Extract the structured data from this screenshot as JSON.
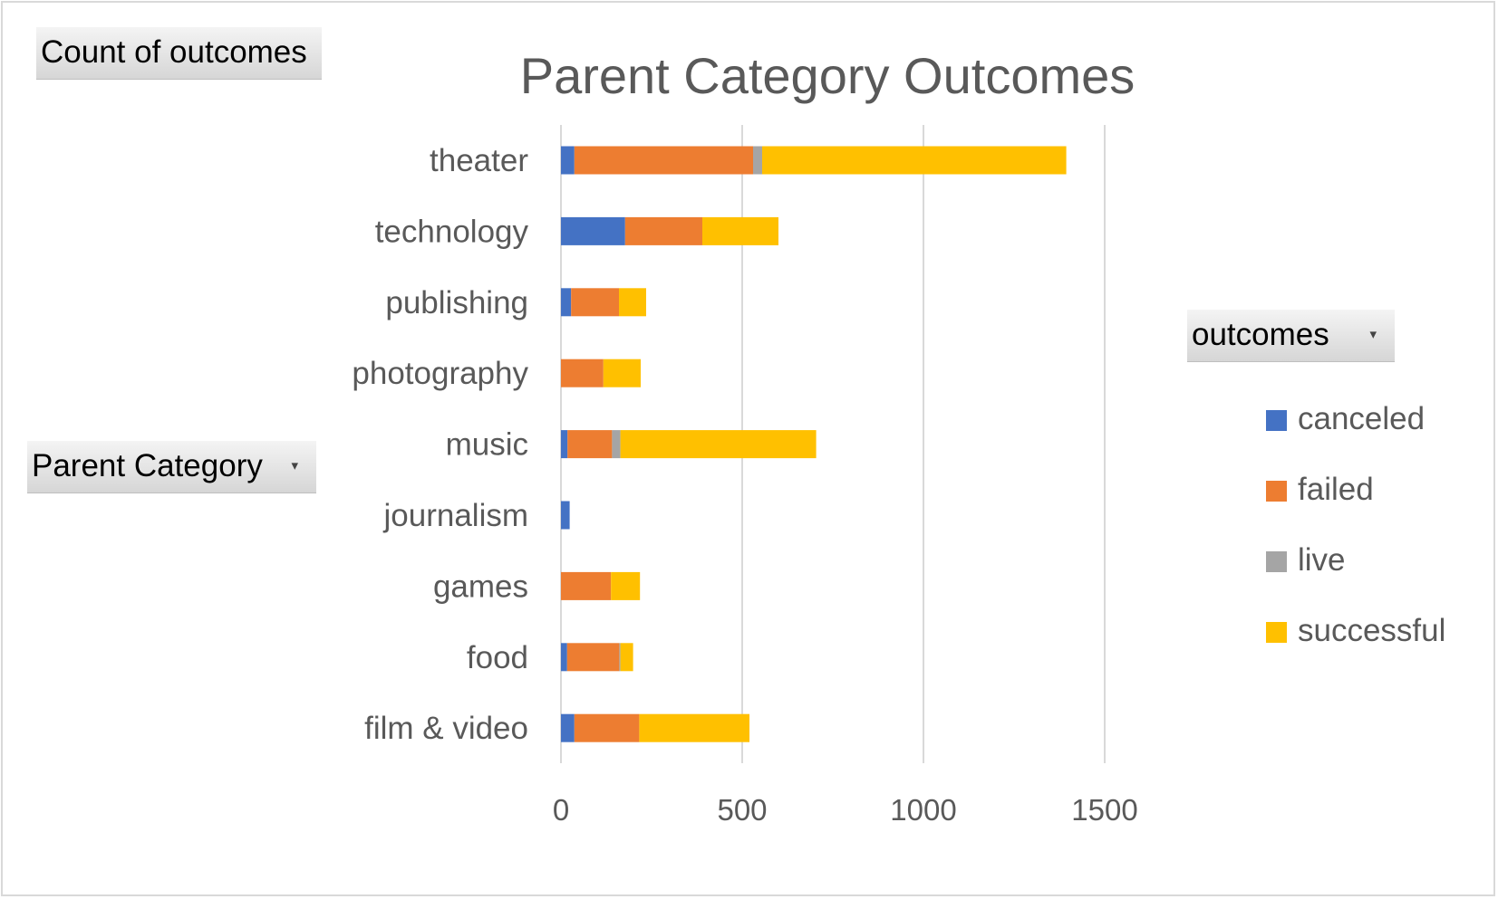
{
  "pivot_fields": {
    "values_field": "Count of outcomes",
    "row_field": "Parent Category",
    "column_field": "outcomes"
  },
  "colors": {
    "canceled": "#4472c4",
    "failed": "#ed7d31",
    "live": "#a5a5a5",
    "successful": "#ffc000",
    "gridline": "#d9d9d9",
    "text": "#595959"
  },
  "chart_data": {
    "type": "bar",
    "orientation": "horizontal",
    "stacked": true,
    "title": "Parent Category Outcomes",
    "categories": [
      "theater",
      "technology",
      "publishing",
      "photography",
      "music",
      "journalism",
      "games",
      "food",
      "film & video"
    ],
    "series": [
      {
        "name": "canceled",
        "values": [
          37,
          177,
          28,
          0,
          18,
          24,
          0,
          17,
          37
        ]
      },
      {
        "name": "failed",
        "values": [
          493,
          213,
          132,
          117,
          123,
          0,
          138,
          144,
          179
        ]
      },
      {
        "name": "live",
        "values": [
          25,
          0,
          0,
          0,
          23,
          0,
          0,
          3,
          0
        ]
      },
      {
        "name": "successful",
        "values": [
          839,
          210,
          75,
          103,
          540,
          0,
          80,
          35,
          304
        ]
      }
    ],
    "xlim": [
      0,
      1500
    ],
    "ticks": [
      0,
      500,
      1000,
      1500
    ],
    "grid": true,
    "legend_position": "right"
  }
}
